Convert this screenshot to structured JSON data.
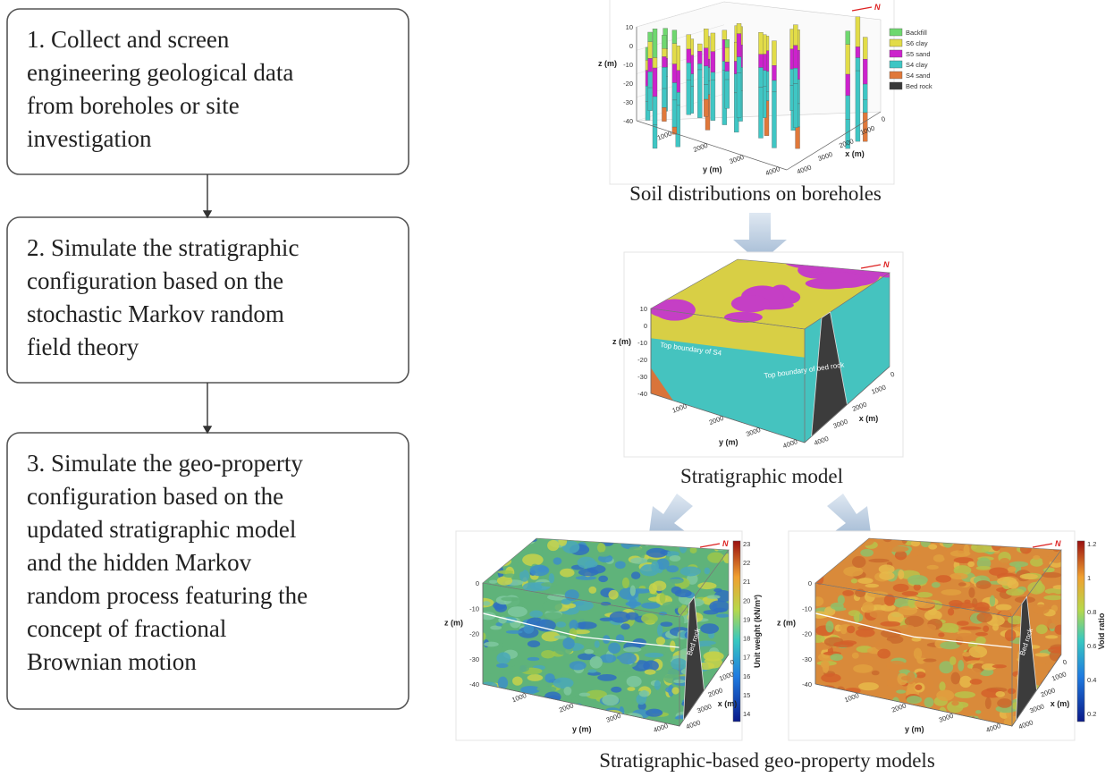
{
  "steps": [
    {
      "lines": [
        "1. Collect and screen",
        "engineering geological data",
        "from boreholes or site",
        "investigation"
      ]
    },
    {
      "lines": [
        "2. Simulate the stratigraphic",
        "configuration based on the",
        "stochastic Markov random",
        "field theory"
      ]
    },
    {
      "lines": [
        "3. Simulate the geo-property",
        "configuration based on the",
        "updated stratigraphic model",
        "and the hidden Markov",
        "random process featuring the",
        "concept of fractional",
        "Brownian motion"
      ]
    }
  ],
  "panels": [
    {
      "caption": "Soil distributions on boreholes",
      "plot": {
        "z_label": "z (m)",
        "x_label": "x (m)",
        "y_label": "y (m)",
        "north": "N",
        "z_ticks": [
          10,
          0,
          -10,
          -20,
          -30,
          -40
        ],
        "y_ticks": [
          1000,
          2000,
          3000,
          4000
        ],
        "x_ticks": [
          0,
          1000,
          2000,
          3000,
          4000
        ],
        "legend": [
          {
            "label": "Backfill",
            "color": "#6fd86f"
          },
          {
            "label": "S6 clay",
            "color": "#e2dc48"
          },
          {
            "label": "S5 sand",
            "color": "#cc22cc"
          },
          {
            "label": "S4 clay",
            "color": "#3fc6c4"
          },
          {
            "label": "S4 sand",
            "color": "#e0783a"
          },
          {
            "label": "Bed rock",
            "color": "#3a3a3a"
          }
        ]
      }
    },
    {
      "caption": "Stratigraphic model",
      "plot": {
        "z_label": "z (m)",
        "x_label": "x (m)",
        "y_label": "y (m)",
        "north": "N",
        "z_ticks": [
          10,
          0,
          -10,
          -20,
          -30,
          -40
        ],
        "y_ticks": [
          1000,
          2000,
          3000,
          4000
        ],
        "x_ticks": [
          0,
          1000,
          2000,
          3000,
          4000
        ],
        "annotations": [
          "Top boundary of S4",
          "Top boundary of bed rock"
        ]
      }
    },
    {
      "plot": {
        "z_label": "z (m)",
        "x_label": "x (m)",
        "y_label": "y (m)",
        "north": "N",
        "z_ticks": [
          0,
          -10,
          -20,
          -30,
          -40
        ],
        "y_ticks": [
          1000,
          2000,
          3000,
          4000
        ],
        "x_ticks": [
          0,
          1000,
          2000,
          3000,
          4000
        ],
        "annotations": [
          "Bed rock"
        ],
        "colorbar": {
          "label": "Unit weight (kN/m³)",
          "ticks": [
            23,
            22,
            21,
            20,
            19,
            18,
            17,
            16,
            15,
            14
          ]
        }
      }
    },
    {
      "plot": {
        "z_label": "z (m)",
        "x_label": "x (m)",
        "y_label": "y (m)",
        "north": "N",
        "z_ticks": [
          0,
          -10,
          -20,
          -30,
          -40
        ],
        "y_ticks": [
          1000,
          2000,
          3000,
          4000
        ],
        "x_ticks": [
          0,
          1000,
          2000,
          3000,
          4000
        ],
        "annotations": [
          "Bed rock"
        ],
        "colorbar": {
          "label": "Void ratio",
          "ticks": [
            1.2,
            1.0,
            0.8,
            0.6,
            0.4,
            0.2
          ]
        }
      }
    }
  ],
  "geo_caption": "Stratigraphic-based geo-property models"
}
